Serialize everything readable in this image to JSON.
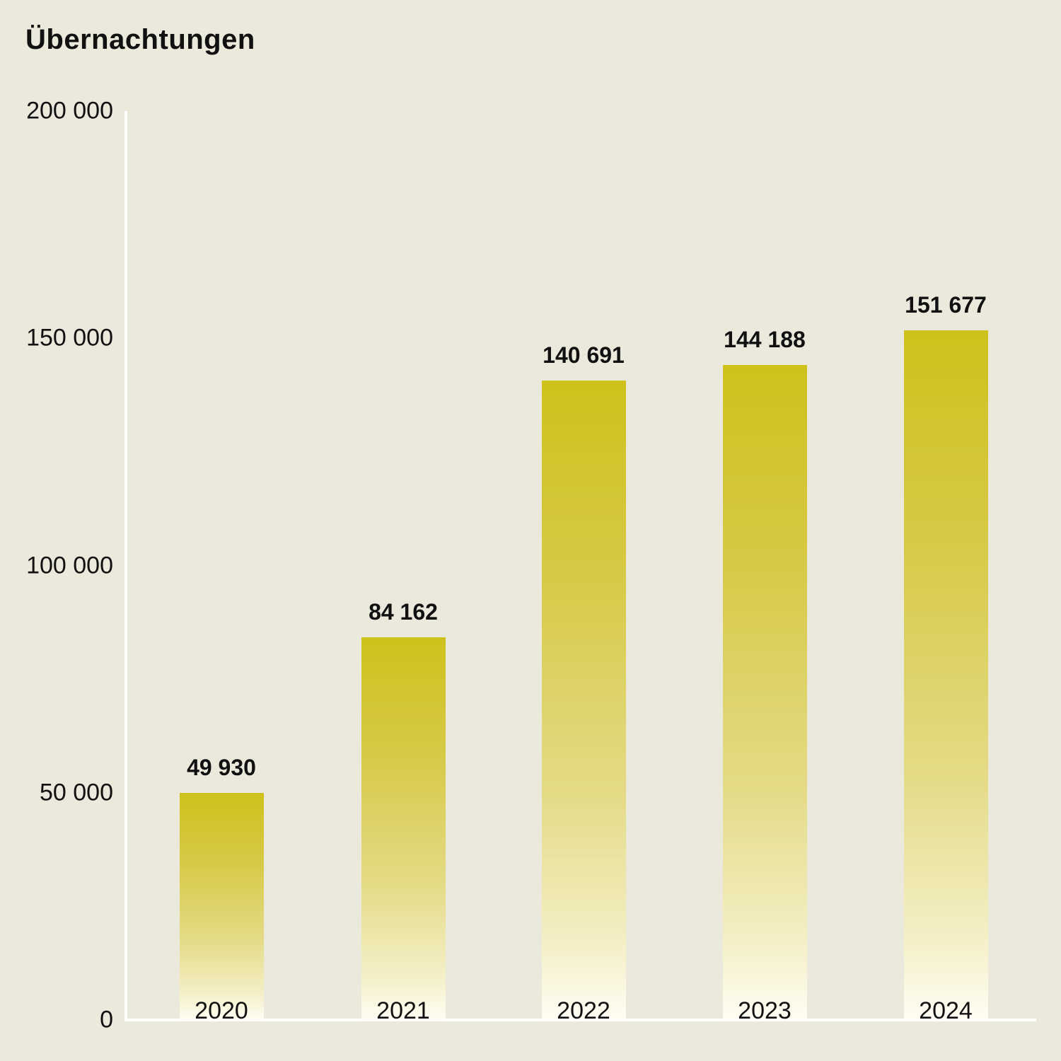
{
  "title": "Übernachtungen",
  "y_axis": {
    "ticks": [
      "200 000",
      "150 000",
      "100 000",
      "50 000",
      "0"
    ]
  },
  "x_axis": {
    "ticks": [
      "2020",
      "2021",
      "2022",
      "2023",
      "2024"
    ]
  },
  "bars": [
    {
      "year": "2020",
      "label": "49 930",
      "value": 49930
    },
    {
      "year": "2021",
      "label": "84 162",
      "value": 84162
    },
    {
      "year": "2022",
      "label": "140 691",
      "value": 140691
    },
    {
      "year": "2023",
      "label": "144 188",
      "value": 144188
    },
    {
      "year": "2024",
      "label": "151 677",
      "value": 151677
    }
  ],
  "colors": {
    "background": "#ebe8dc",
    "bar_top": "#cfc11c",
    "bar_bottom": "#fffdf4",
    "axis": "#ffffff",
    "text": "#111111"
  },
  "chart_data": {
    "type": "bar",
    "title": "Übernachtungen",
    "categories": [
      "2020",
      "2021",
      "2022",
      "2023",
      "2024"
    ],
    "values": [
      49930,
      84162,
      140691,
      144188,
      151677
    ],
    "data_labels": [
      "49 930",
      "84 162",
      "140 691",
      "144 188",
      "151 677"
    ],
    "xlabel": "",
    "ylabel": "",
    "ylim": [
      0,
      200000
    ],
    "yticks": [
      0,
      50000,
      100000,
      150000,
      200000
    ],
    "grid": false,
    "legend": null
  }
}
